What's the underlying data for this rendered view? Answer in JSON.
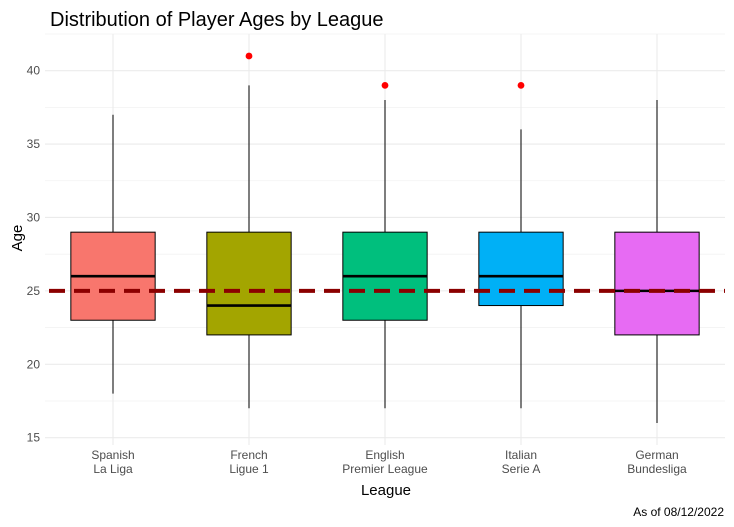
{
  "chart_data": {
    "type": "boxplot",
    "title": "Distribution of Player Ages by League",
    "xlabel": "League",
    "ylabel": "Age",
    "caption": "As of 08/12/2022",
    "ylim": [
      14.5,
      42.5
    ],
    "yticks": [
      15,
      20,
      25,
      30,
      35,
      40
    ],
    "grid": true,
    "legend": "none",
    "reference_line": {
      "value": 25,
      "style": "dashed",
      "color": "#8b0000"
    },
    "categories": [
      {
        "lines": [
          "Spanish",
          "La Liga"
        ],
        "min": 18,
        "q1": 23,
        "median": 26,
        "q3": 29,
        "max": 37,
        "outliers": [],
        "color": "#f8766d"
      },
      {
        "lines": [
          "French",
          "Ligue 1"
        ],
        "min": 17,
        "q1": 22,
        "median": 24,
        "q3": 29,
        "max": 39,
        "outliers": [
          41
        ],
        "color": "#a3a500"
      },
      {
        "lines": [
          "English",
          "Premier League"
        ],
        "min": 17,
        "q1": 23,
        "median": 26,
        "q3": 29,
        "max": 38,
        "outliers": [
          39
        ],
        "color": "#00bf7d"
      },
      {
        "lines": [
          "Italian",
          "Serie A"
        ],
        "min": 17,
        "q1": 24,
        "median": 26,
        "q3": 29,
        "max": 36,
        "outliers": [
          39
        ],
        "color": "#00b0f6"
      },
      {
        "lines": [
          "German",
          "Bundesliga"
        ],
        "min": 16,
        "q1": 22,
        "median": 25,
        "q3": 29,
        "max": 38,
        "outliers": [],
        "color": "#e76bf3"
      }
    ],
    "outlier_color": "#ff0000"
  }
}
